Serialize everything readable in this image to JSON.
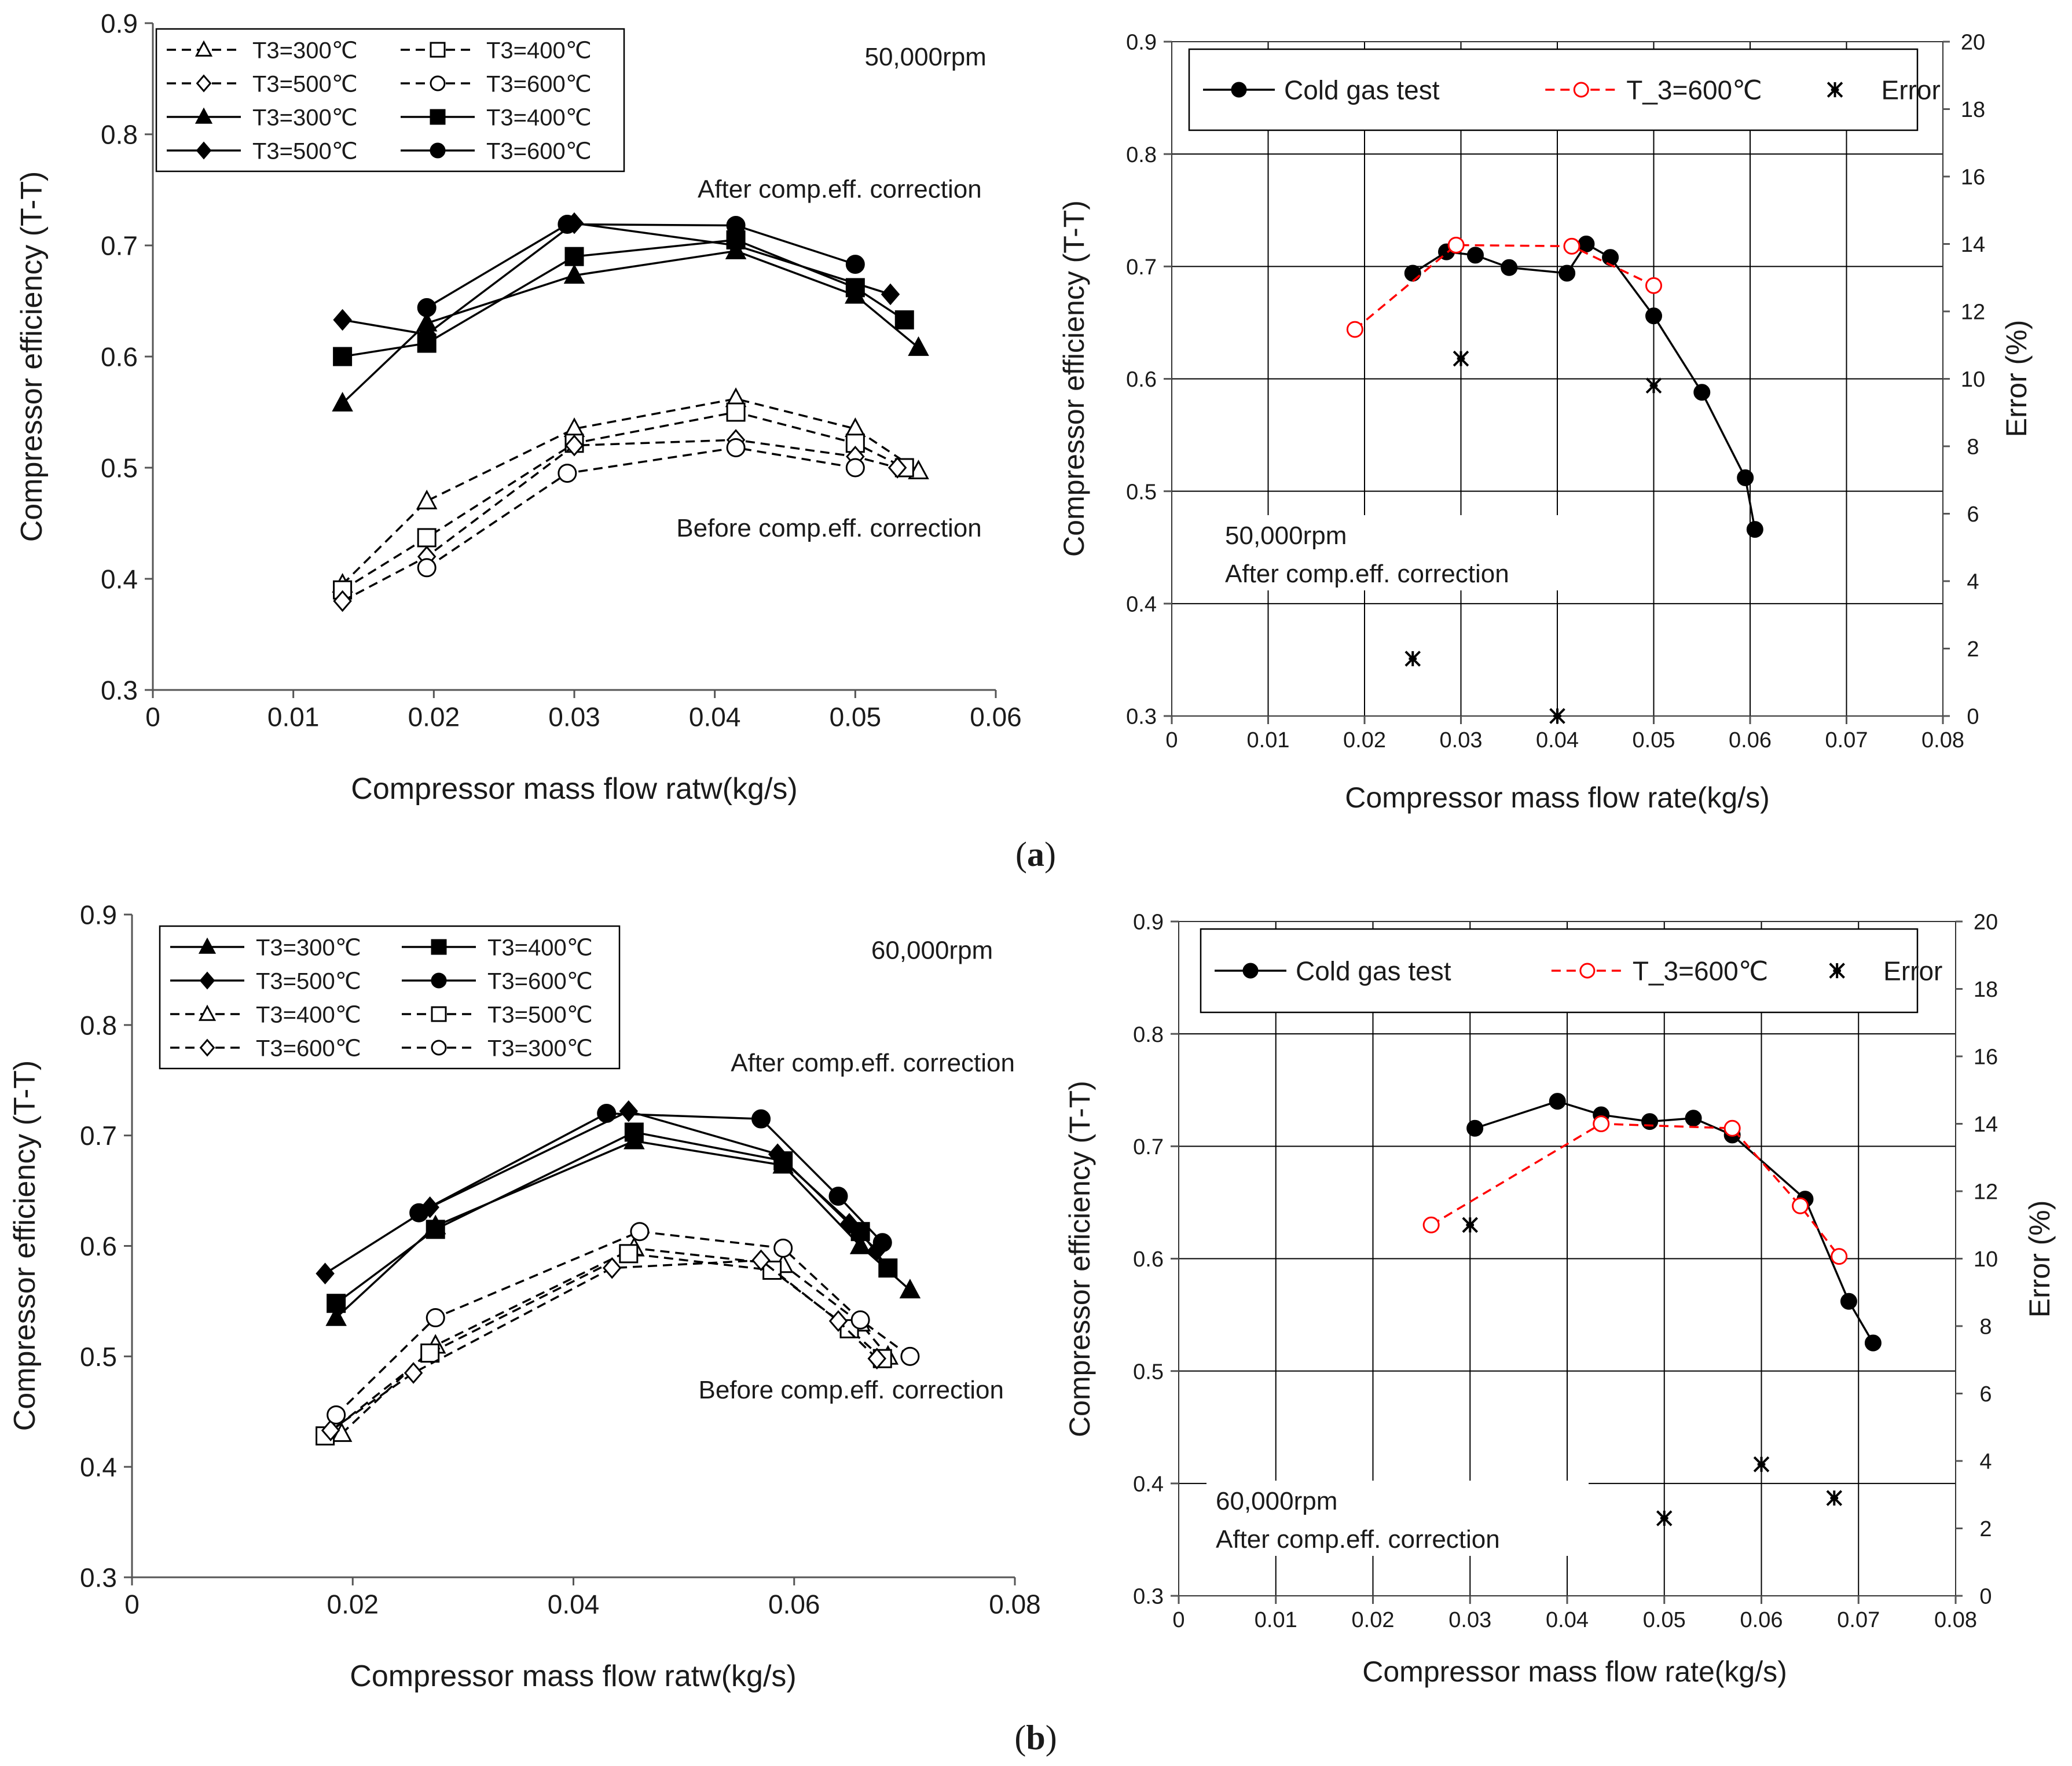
{
  "figure_labels": {
    "a": "a",
    "b": "b"
  },
  "chart_data": [
    {
      "id": "a-left",
      "type": "line",
      "xlabel": "Compressor mass flow ratw(kg/s)",
      "ylabel": "Compressor efficiency (T-T)",
      "xlim": [
        0,
        0.06
      ],
      "ylim": [
        0.3,
        0.9
      ],
      "xticks": [
        0,
        0.01,
        0.02,
        0.03,
        0.04,
        0.05,
        0.06
      ],
      "xtick_labels": [
        "0",
        "0.01",
        "0.02",
        "0.03",
        "0.04",
        "0.05",
        "0.06"
      ],
      "yticks": [
        0.3,
        0.4,
        0.5,
        0.6,
        0.7,
        0.8,
        0.9
      ],
      "ytick_labels": [
        "0.3",
        "0.4",
        "0.5",
        "0.6",
        "0.7",
        "0.8",
        "0.9"
      ],
      "grid": false,
      "legend_position": "top-left",
      "legend_columns": 2,
      "annotations": [
        {
          "text": "50,000rpm",
          "x": 0.055,
          "y": 0.862,
          "anchor": "middle"
        },
        {
          "text": "After comp.eff. correction",
          "x": 0.059,
          "y": 0.743,
          "anchor": "end"
        },
        {
          "text": "Before comp.eff. correction",
          "x": 0.059,
          "y": 0.438,
          "anchor": "end"
        }
      ],
      "series": [
        {
          "name": "T3=300℃",
          "marker": "triangle",
          "fill": "open",
          "dash": true,
          "x": [
            0.0135,
            0.0195,
            0.03,
            0.0415,
            0.05,
            0.0545
          ],
          "y": [
            0.395,
            0.47,
            0.535,
            0.562,
            0.535,
            0.497
          ]
        },
        {
          "name": "T3=400℃",
          "marker": "square",
          "fill": "open",
          "dash": true,
          "x": [
            0.0135,
            0.0195,
            0.03,
            0.0415,
            0.05,
            0.0535
          ],
          "y": [
            0.39,
            0.437,
            0.522,
            0.55,
            0.522,
            0.5
          ]
        },
        {
          "name": "T3=500℃",
          "marker": "diamond",
          "fill": "open",
          "dash": true,
          "x": [
            0.0135,
            0.0195,
            0.03,
            0.0415,
            0.05,
            0.053
          ],
          "y": [
            0.38,
            0.42,
            0.52,
            0.525,
            0.51,
            0.5
          ]
        },
        {
          "name": "T3=600℃",
          "marker": "circle",
          "fill": "open",
          "dash": true,
          "x": [
            0.0195,
            0.0295,
            0.0415,
            0.05
          ],
          "y": [
            0.41,
            0.495,
            0.518,
            0.5
          ]
        },
        {
          "name": "T3=300℃",
          "marker": "triangle",
          "fill": "filled",
          "dash": false,
          "x": [
            0.0135,
            0.0195,
            0.03,
            0.0415,
            0.05,
            0.0545
          ],
          "y": [
            0.558,
            0.63,
            0.673,
            0.695,
            0.655,
            0.608
          ]
        },
        {
          "name": "T3=400℃",
          "marker": "square",
          "fill": "filled",
          "dash": false,
          "x": [
            0.0135,
            0.0195,
            0.03,
            0.0415,
            0.05,
            0.0535
          ],
          "y": [
            0.6,
            0.612,
            0.69,
            0.705,
            0.662,
            0.633
          ]
        },
        {
          "name": "T3=500℃",
          "marker": "diamond",
          "fill": "filled",
          "dash": false,
          "x": [
            0.0135,
            0.0195,
            0.03,
            0.0415,
            0.0525
          ],
          "y": [
            0.633,
            0.62,
            0.72,
            0.7,
            0.656
          ]
        },
        {
          "name": "T3=600℃",
          "marker": "circle",
          "fill": "filled",
          "dash": false,
          "x": [
            0.0195,
            0.0295,
            0.0415,
            0.05
          ],
          "y": [
            0.644,
            0.719,
            0.718,
            0.683
          ]
        }
      ]
    },
    {
      "id": "a-right",
      "type": "line",
      "xlabel": "Compressor mass flow rate(kg/s)",
      "ylabel": "Compressor efficiency (T-T)",
      "y2label": "Error (%)",
      "xlim": [
        0,
        0.08
      ],
      "ylim": [
        0.3,
        0.9
      ],
      "y2lim": [
        0,
        20
      ],
      "xticks": [
        0,
        0.01,
        0.02,
        0.03,
        0.04,
        0.05,
        0.06,
        0.07,
        0.08
      ],
      "xtick_labels": [
        "0",
        "0.01",
        "0.02",
        "0.03",
        "0.04",
        "0.05",
        "0.06",
        "0.07",
        "0.08"
      ],
      "yticks": [
        0.3,
        0.4,
        0.5,
        0.6,
        0.7,
        0.8,
        0.9
      ],
      "ytick_labels": [
        "0.3",
        "0.4",
        "0.5",
        "0.6",
        "0.7",
        "0.8",
        "0.9"
      ],
      "y2ticks": [
        0,
        2,
        4,
        6,
        8,
        10,
        12,
        14,
        16,
        18,
        20
      ],
      "y2tick_labels": [
        "0",
        "2",
        "4",
        "6",
        "8",
        "10",
        "12",
        "14",
        "16",
        "18",
        "20"
      ],
      "grid": true,
      "legend_position": "top",
      "legend_columns": 3,
      "info_lines": [
        "50,000rpm",
        "After comp.eff. correction"
      ],
      "series": [
        {
          "name": "Cold gas test",
          "marker": "circle",
          "fill": "filled",
          "color": "#000000",
          "dash": false,
          "axis": "y",
          "x": [
            0.025,
            0.0285,
            0.0315,
            0.035,
            0.041,
            0.043,
            0.0455,
            0.05,
            0.055,
            0.0595,
            0.0605
          ],
          "y": [
            0.694,
            0.713,
            0.71,
            0.699,
            0.694,
            0.72,
            0.708,
            0.656,
            0.588,
            0.512,
            0.466
          ]
        },
        {
          "name": "T_3=600℃",
          "marker": "circle",
          "fill": "open",
          "color": "#ff0000",
          "dash": true,
          "axis": "y",
          "x": [
            0.019,
            0.0295,
            0.0415,
            0.05
          ],
          "y": [
            0.644,
            0.719,
            0.718,
            0.683
          ]
        },
        {
          "name": "Error",
          "marker": "star",
          "fill": "none",
          "color": "#000000",
          "dash": false,
          "axis": "y2",
          "x": [
            0.025,
            0.03,
            0.04,
            0.05
          ],
          "y": [
            1.7,
            10.6,
            0.0,
            9.8
          ]
        }
      ]
    },
    {
      "id": "b-left",
      "type": "line",
      "xlabel": "Compressor mass flow ratw(kg/s)",
      "ylabel": "Compressor efficiency (T-T)",
      "xlim": [
        0,
        0.08
      ],
      "ylim": [
        0.3,
        0.9
      ],
      "xticks": [
        0,
        0.02,
        0.04,
        0.06,
        0.08
      ],
      "xtick_labels": [
        "0",
        "0.02",
        "0.04",
        "0.06",
        "0.08"
      ],
      "yticks": [
        0.3,
        0.4,
        0.5,
        0.6,
        0.7,
        0.8,
        0.9
      ],
      "ytick_labels": [
        "0.3",
        "0.4",
        "0.5",
        "0.6",
        "0.7",
        "0.8",
        "0.9"
      ],
      "grid": false,
      "legend_position": "top-left",
      "legend_columns": 2,
      "annotations": [
        {
          "text": "60,000rpm",
          "x": 0.0725,
          "y": 0.86,
          "anchor": "middle"
        },
        {
          "text": "After comp.eff. correction",
          "x": 0.08,
          "y": 0.758,
          "anchor": "end"
        },
        {
          "text": "Before comp.eff. correction",
          "x": 0.079,
          "y": 0.462,
          "anchor": "end"
        }
      ],
      "series": [
        {
          "name": "T3=300℃",
          "marker": "triangle",
          "fill": "filled",
          "dash": false,
          "x": [
            0.0185,
            0.0275,
            0.0455,
            0.059,
            0.066,
            0.0705
          ],
          "y": [
            0.535,
            0.618,
            0.695,
            0.673,
            0.6,
            0.56
          ]
        },
        {
          "name": "T3=400℃",
          "marker": "square",
          "fill": "filled",
          "dash": false,
          "x": [
            0.0185,
            0.0275,
            0.0455,
            0.059,
            0.066,
            0.0685
          ],
          "y": [
            0.548,
            0.615,
            0.703,
            0.677,
            0.613,
            0.58
          ]
        },
        {
          "name": "T3=500℃",
          "marker": "diamond",
          "fill": "filled",
          "dash": false,
          "x": [
            0.0175,
            0.027,
            0.045,
            0.0585,
            0.065,
            0.0675
          ],
          "y": [
            0.575,
            0.635,
            0.722,
            0.683,
            0.62,
            0.596
          ]
        },
        {
          "name": "T3=600℃",
          "marker": "circle",
          "fill": "filled",
          "dash": false,
          "x": [
            0.026,
            0.043,
            0.057,
            0.064,
            0.068
          ],
          "y": [
            0.63,
            0.72,
            0.715,
            0.645,
            0.603
          ]
        },
        {
          "name": "T3=400℃",
          "marker": "triangle",
          "fill": "open",
          "dash": true,
          "x": [
            0.019,
            0.0275,
            0.0455,
            0.059,
            0.066,
            0.0685
          ],
          "y": [
            0.43,
            0.51,
            0.598,
            0.583,
            0.53,
            0.5
          ]
        },
        {
          "name": "T3=500℃",
          "marker": "square",
          "fill": "open",
          "dash": true,
          "x": [
            0.0175,
            0.027,
            0.045,
            0.058,
            0.065,
            0.068
          ],
          "y": [
            0.428,
            0.503,
            0.593,
            0.578,
            0.525,
            0.498
          ]
        },
        {
          "name": "T3=600℃",
          "marker": "diamond",
          "fill": "open",
          "dash": true,
          "x": [
            0.018,
            0.0255,
            0.0435,
            0.057,
            0.064,
            0.0675
          ],
          "y": [
            0.433,
            0.485,
            0.58,
            0.587,
            0.532,
            0.498
          ]
        },
        {
          "name": "T3=300℃",
          "marker": "circle",
          "fill": "open",
          "dash": true,
          "x": [
            0.0185,
            0.0275,
            0.046,
            0.059,
            0.066,
            0.0705
          ],
          "y": [
            0.447,
            0.535,
            0.613,
            0.598,
            0.533,
            0.5
          ]
        }
      ]
    },
    {
      "id": "b-right",
      "type": "line",
      "xlabel": "Compressor mass flow rate(kg/s)",
      "ylabel": "Compressor efficiency (T-T)",
      "y2label": "Error (%)",
      "xlim": [
        0,
        0.08
      ],
      "ylim": [
        0.3,
        0.9
      ],
      "y2lim": [
        0,
        20
      ],
      "xticks": [
        0,
        0.01,
        0.02,
        0.03,
        0.04,
        0.05,
        0.06,
        0.07,
        0.08
      ],
      "xtick_labels": [
        "0",
        "0.01",
        "0.02",
        "0.03",
        "0.04",
        "0.05",
        "0.06",
        "0.07",
        "0.08"
      ],
      "yticks": [
        0.3,
        0.4,
        0.5,
        0.6,
        0.7,
        0.8,
        0.9
      ],
      "ytick_labels": [
        "0.3",
        "0.4",
        "0.5",
        "0.6",
        "0.7",
        "0.8",
        "0.9"
      ],
      "y2ticks": [
        0,
        2,
        4,
        6,
        8,
        10,
        12,
        14,
        16,
        18,
        20
      ],
      "y2tick_labels": [
        "0",
        "2",
        "4",
        "6",
        "8",
        "10",
        "12",
        "14",
        "16",
        "18",
        "20"
      ],
      "grid": true,
      "legend_position": "top",
      "legend_columns": 3,
      "info_lines": [
        "60,000rpm",
        "After comp.eff. correction"
      ],
      "series": [
        {
          "name": "Cold gas test",
          "marker": "circle",
          "fill": "filled",
          "color": "#000000",
          "dash": false,
          "axis": "y",
          "x": [
            0.0305,
            0.039,
            0.0435,
            0.0485,
            0.053,
            0.057,
            0.0645,
            0.069,
            0.0715
          ],
          "y": [
            0.716,
            0.74,
            0.728,
            0.722,
            0.725,
            0.71,
            0.653,
            0.562,
            0.525
          ]
        },
        {
          "name": "T_3=600℃",
          "marker": "circle",
          "fill": "open",
          "color": "#ff0000",
          "dash": true,
          "axis": "y",
          "x": [
            0.026,
            0.0435,
            0.057,
            0.064,
            0.068
          ],
          "y": [
            0.63,
            0.72,
            0.716,
            0.647,
            0.602
          ]
        },
        {
          "name": "Error",
          "marker": "star",
          "fill": "none",
          "color": "#000000",
          "dash": false,
          "axis": "y2",
          "x": [
            0.03,
            0.05,
            0.06,
            0.0675
          ],
          "y": [
            11.0,
            2.3,
            3.9,
            2.9
          ]
        }
      ]
    }
  ]
}
